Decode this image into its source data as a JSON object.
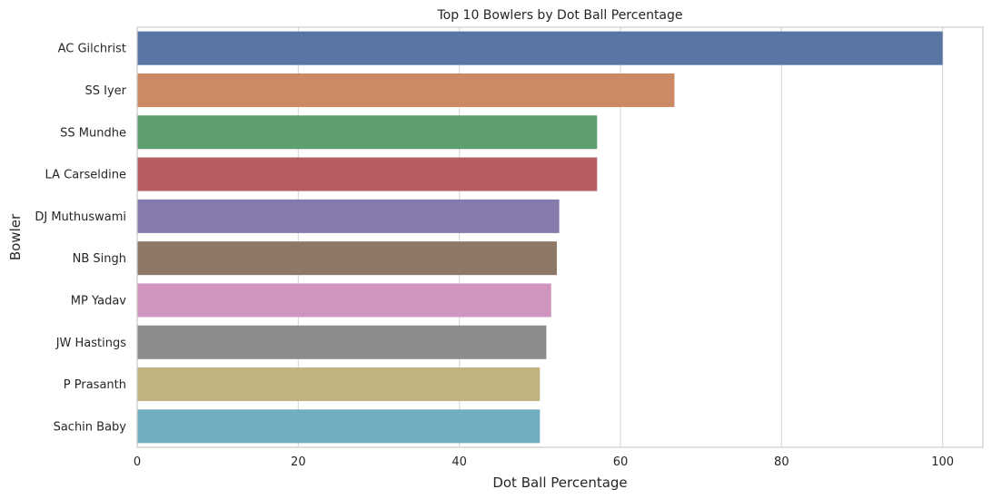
{
  "chart_data": {
    "type": "bar",
    "orientation": "horizontal",
    "title": "Top 10 Bowlers by Dot Ball Percentage",
    "xlabel": "Dot Ball Percentage",
    "ylabel": "Bowler",
    "xlim": [
      0,
      105
    ],
    "xticks": [
      0,
      20,
      40,
      60,
      80,
      100
    ],
    "grid": true,
    "categories": [
      "AC Gilchrist",
      "SS Iyer",
      "SS Mundhe",
      "LA Carseldine",
      "DJ Muthuswami",
      "NB Singh",
      "MP Yadav",
      "JW Hastings",
      "P Prasanth",
      "Sachin Baby"
    ],
    "values": [
      100.0,
      66.7,
      57.1,
      57.1,
      52.4,
      52.1,
      51.4,
      50.8,
      50.0,
      50.0
    ],
    "colors": [
      "#5975a4",
      "#cc8963",
      "#5f9e6e",
      "#b55d60",
      "#857aab",
      "#8d7866",
      "#d095bf",
      "#8c8c8c",
      "#c1b37f",
      "#71aec0"
    ]
  }
}
